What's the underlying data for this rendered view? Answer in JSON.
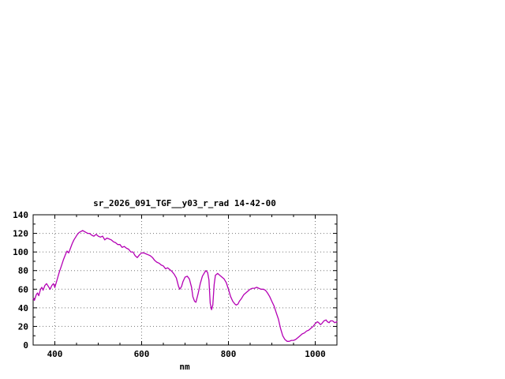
{
  "colors": {
    "background": "#ffffff",
    "axis": "#000000",
    "grid": "#777777",
    "line": "#b400b4"
  },
  "chart_data": {
    "type": "line",
    "title": "sr_2026_091_TGF__y03_r_rad 14-42-00",
    "xlabel": "nm",
    "ylabel": "",
    "xlim": [
      350,
      1050
    ],
    "ylim": [
      0,
      140
    ],
    "xticks": [
      400,
      600,
      800,
      1000
    ],
    "yticks": [
      0,
      20,
      40,
      60,
      80,
      100,
      120,
      140
    ],
    "minor_xtick_step": 50,
    "minor_ytick_step": 10,
    "grid": true,
    "legend": "none",
    "line_color": "#b400b4",
    "points": [
      [
        350,
        50
      ],
      [
        353,
        48
      ],
      [
        357,
        54
      ],
      [
        360,
        56
      ],
      [
        363,
        53
      ],
      [
        367,
        60
      ],
      [
        370,
        62
      ],
      [
        373,
        59
      ],
      [
        377,
        64
      ],
      [
        381,
        66
      ],
      [
        385,
        63
      ],
      [
        389,
        60
      ],
      [
        393,
        64
      ],
      [
        397,
        66
      ],
      [
        400,
        62
      ],
      [
        405,
        70
      ],
      [
        410,
        78
      ],
      [
        415,
        85
      ],
      [
        420,
        92
      ],
      [
        425,
        98
      ],
      [
        428,
        101
      ],
      [
        432,
        99
      ],
      [
        436,
        104
      ],
      [
        440,
        109
      ],
      [
        444,
        113
      ],
      [
        448,
        116
      ],
      [
        452,
        119
      ],
      [
        456,
        121
      ],
      [
        460,
        122
      ],
      [
        464,
        123
      ],
      [
        468,
        122
      ],
      [
        472,
        121
      ],
      [
        476,
        120
      ],
      [
        480,
        120
      ],
      [
        485,
        118
      ],
      [
        490,
        117
      ],
      [
        495,
        119
      ],
      [
        500,
        117
      ],
      [
        505,
        116
      ],
      [
        510,
        117
      ],
      [
        515,
        113
      ],
      [
        520,
        115
      ],
      [
        525,
        114
      ],
      [
        530,
        113
      ],
      [
        535,
        111
      ],
      [
        540,
        110
      ],
      [
        545,
        108
      ],
      [
        550,
        108
      ],
      [
        555,
        105
      ],
      [
        560,
        106
      ],
      [
        565,
        104
      ],
      [
        570,
        103
      ],
      [
        575,
        100
      ],
      [
        580,
        100
      ],
      [
        585,
        96
      ],
      [
        590,
        94
      ],
      [
        595,
        97
      ],
      [
        600,
        99
      ],
      [
        605,
        99
      ],
      [
        610,
        98
      ],
      [
        615,
        97
      ],
      [
        620,
        96
      ],
      [
        625,
        94
      ],
      [
        630,
        91
      ],
      [
        635,
        89
      ],
      [
        640,
        88
      ],
      [
        645,
        86
      ],
      [
        650,
        85
      ],
      [
        655,
        82
      ],
      [
        660,
        83
      ],
      [
        665,
        81
      ],
      [
        670,
        79
      ],
      [
        675,
        76
      ],
      [
        680,
        72
      ],
      [
        685,
        63
      ],
      [
        688,
        60
      ],
      [
        692,
        63
      ],
      [
        695,
        68
      ],
      [
        700,
        73
      ],
      [
        705,
        74
      ],
      [
        710,
        71
      ],
      [
        715,
        62
      ],
      [
        718,
        52
      ],
      [
        722,
        47
      ],
      [
        725,
        46
      ],
      [
        730,
        55
      ],
      [
        735,
        66
      ],
      [
        740,
        74
      ],
      [
        745,
        78
      ],
      [
        748,
        80
      ],
      [
        752,
        78
      ],
      [
        755,
        70
      ],
      [
        758,
        45
      ],
      [
        761,
        38
      ],
      [
        764,
        43
      ],
      [
        767,
        65
      ],
      [
        770,
        75
      ],
      [
        775,
        77
      ],
      [
        780,
        75
      ],
      [
        785,
        73
      ],
      [
        790,
        71
      ],
      [
        795,
        67
      ],
      [
        800,
        60
      ],
      [
        805,
        52
      ],
      [
        810,
        47
      ],
      [
        815,
        44
      ],
      [
        818,
        43
      ],
      [
        822,
        44
      ],
      [
        825,
        47
      ],
      [
        830,
        50
      ],
      [
        835,
        54
      ],
      [
        840,
        56
      ],
      [
        845,
        58
      ],
      [
        850,
        60
      ],
      [
        855,
        61
      ],
      [
        860,
        61
      ],
      [
        865,
        62
      ],
      [
        870,
        61
      ],
      [
        875,
        60
      ],
      [
        880,
        60
      ],
      [
        885,
        59
      ],
      [
        890,
        56
      ],
      [
        895,
        52
      ],
      [
        900,
        47
      ],
      [
        905,
        42
      ],
      [
        910,
        35
      ],
      [
        915,
        28
      ],
      [
        920,
        18
      ],
      [
        925,
        10
      ],
      [
        930,
        6
      ],
      [
        935,
        4
      ],
      [
        940,
        4
      ],
      [
        945,
        5
      ],
      [
        950,
        5
      ],
      [
        955,
        6
      ],
      [
        960,
        8
      ],
      [
        965,
        10
      ],
      [
        970,
        12
      ],
      [
        975,
        13
      ],
      [
        980,
        15
      ],
      [
        985,
        16
      ],
      [
        990,
        18
      ],
      [
        995,
        20
      ],
      [
        1000,
        23
      ],
      [
        1005,
        25
      ],
      [
        1008,
        24
      ],
      [
        1012,
        22
      ],
      [
        1015,
        23
      ],
      [
        1020,
        26
      ],
      [
        1025,
        27
      ],
      [
        1028,
        25
      ],
      [
        1032,
        24
      ],
      [
        1035,
        26
      ],
      [
        1040,
        26
      ],
      [
        1045,
        24
      ],
      [
        1050,
        25
      ]
    ]
  }
}
